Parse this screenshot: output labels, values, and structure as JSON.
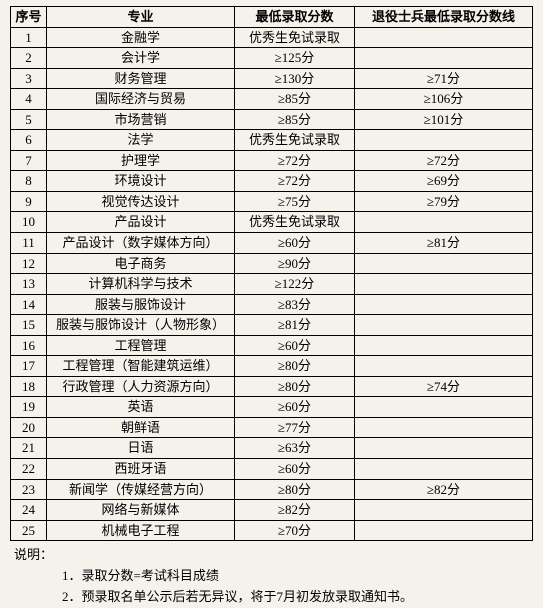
{
  "headers": {
    "num": "序号",
    "major": "专业",
    "score": "最低录取分数",
    "veteran": "退役士兵最低录取分数线"
  },
  "rows": [
    {
      "n": "1",
      "major": "金融学",
      "score": "优秀生免试录取",
      "veteran": ""
    },
    {
      "n": "2",
      "major": "会计学",
      "score": "≥125分",
      "veteran": ""
    },
    {
      "n": "3",
      "major": "财务管理",
      "score": "≥130分",
      "veteran": "≥71分"
    },
    {
      "n": "4",
      "major": "国际经济与贸易",
      "score": "≥85分",
      "veteran": "≥106分"
    },
    {
      "n": "5",
      "major": "市场营销",
      "score": "≥85分",
      "veteran": "≥101分"
    },
    {
      "n": "6",
      "major": "法学",
      "score": "优秀生免试录取",
      "veteran": ""
    },
    {
      "n": "7",
      "major": "护理学",
      "score": "≥72分",
      "veteran": "≥72分"
    },
    {
      "n": "8",
      "major": "环境设计",
      "score": "≥72分",
      "veteran": "≥69分"
    },
    {
      "n": "9",
      "major": "视觉传达设计",
      "score": "≥75分",
      "veteran": "≥79分"
    },
    {
      "n": "10",
      "major": "产品设计",
      "score": "优秀生免试录取",
      "veteran": ""
    },
    {
      "n": "11",
      "major": "产品设计（数字媒体方向）",
      "score": "≥60分",
      "veteran": "≥81分"
    },
    {
      "n": "12",
      "major": "电子商务",
      "score": "≥90分",
      "veteran": ""
    },
    {
      "n": "13",
      "major": "计算机科学与技术",
      "score": "≥122分",
      "veteran": ""
    },
    {
      "n": "14",
      "major": "服装与服饰设计",
      "score": "≥83分",
      "veteran": ""
    },
    {
      "n": "15",
      "major": "服装与服饰设计（人物形象）",
      "score": "≥81分",
      "veteran": ""
    },
    {
      "n": "16",
      "major": "工程管理",
      "score": "≥60分",
      "veteran": ""
    },
    {
      "n": "17",
      "major": "工程管理（智能建筑运维）",
      "score": "≥80分",
      "veteran": ""
    },
    {
      "n": "18",
      "major": "行政管理（人力资源方向）",
      "score": "≥80分",
      "veteran": "≥74分"
    },
    {
      "n": "19",
      "major": "英语",
      "score": "≥60分",
      "veteran": ""
    },
    {
      "n": "20",
      "major": "朝鲜语",
      "score": "≥77分",
      "veteran": ""
    },
    {
      "n": "21",
      "major": "日语",
      "score": "≥63分",
      "veteran": ""
    },
    {
      "n": "22",
      "major": "西班牙语",
      "score": "≥60分",
      "veteran": ""
    },
    {
      "n": "23",
      "major": "新闻学（传媒经营方向）",
      "score": "≥80分",
      "veteran": "≥82分"
    },
    {
      "n": "24",
      "major": "网络与新媒体",
      "score": "≥82分",
      "veteran": ""
    },
    {
      "n": "25",
      "major": "机械电子工程",
      "score": "≥70分",
      "veteran": ""
    }
  ],
  "notes": {
    "title": "说明：",
    "items": [
      "1．录取分数=考试科目成绩",
      "2．预录取名单公示后若无异议，将于7月初发放录取通知书。"
    ]
  }
}
